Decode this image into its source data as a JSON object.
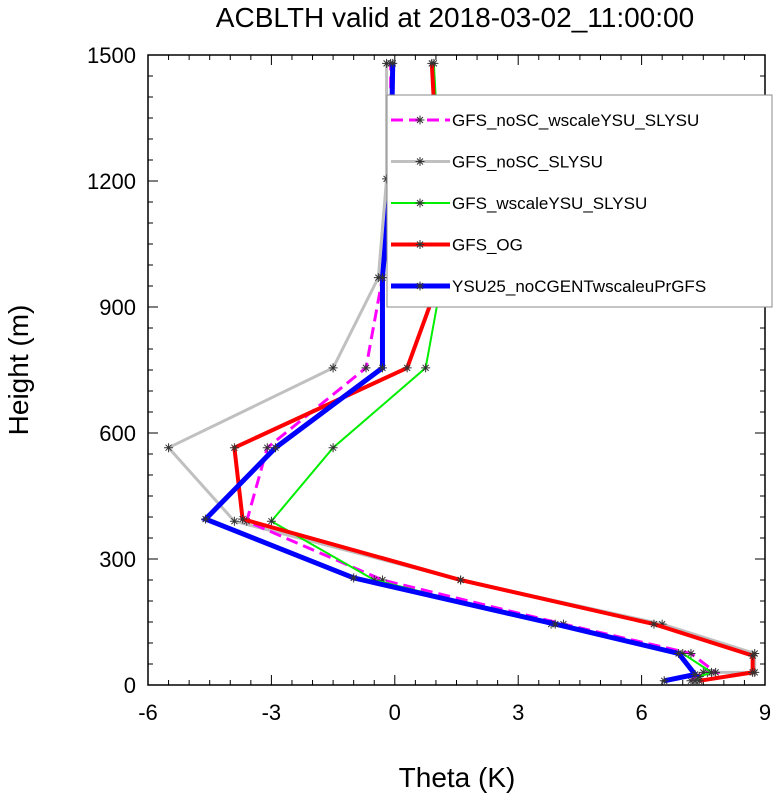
{
  "chart_data": {
    "type": "line",
    "title": "ACBLTH valid at 2018-03-02_11:00:00",
    "xlabel": "Theta (K)",
    "ylabel": "Height (m)",
    "xlim": [
      -6,
      9
    ],
    "ylim": [
      0,
      1500
    ],
    "xticks": [
      "-6",
      "-3",
      "0",
      "3",
      "6",
      "9"
    ],
    "yticks": [
      "0",
      "300",
      "600",
      "900",
      "1200",
      "1500"
    ],
    "grid": false,
    "legend_position": "top-right",
    "series": [
      {
        "name": "GFS_noSC_wscaleYSU_SLYSU",
        "color": "#ff00ff",
        "dash": "dashed",
        "width": 3,
        "marker": "asterisk",
        "points": [
          [
            7.2,
            10
          ],
          [
            7.5,
            30
          ],
          [
            7.8,
            30
          ],
          [
            7.2,
            75
          ],
          [
            4.1,
            145
          ],
          [
            -0.3,
            250
          ],
          [
            -3.6,
            390
          ],
          [
            -3.1,
            565
          ],
          [
            -0.7,
            755
          ],
          [
            -0.3,
            970
          ],
          [
            -0.1,
            1205
          ],
          [
            -0.1,
            1480
          ]
        ]
      },
      {
        "name": "GFS_noSC_SLYSU",
        "color": "#c0c0c0",
        "dash": "solid",
        "width": 3,
        "marker": "asterisk",
        "points": [
          [
            7.3,
            10
          ],
          [
            7.6,
            30
          ],
          [
            8.75,
            30
          ],
          [
            8.75,
            75
          ],
          [
            6.5,
            145
          ],
          [
            1.6,
            250
          ],
          [
            -3.9,
            390
          ],
          [
            -5.5,
            565
          ],
          [
            -1.5,
            755
          ],
          [
            -0.4,
            970
          ],
          [
            -0.2,
            1205
          ],
          [
            -0.2,
            1480
          ]
        ]
      },
      {
        "name": "GFS_wscaleYSU_SLYSU",
        "color": "#00ee00",
        "dash": "solid",
        "width": 2,
        "marker": "asterisk",
        "points": [
          [
            7.3,
            10
          ],
          [
            7.4,
            20
          ],
          [
            7.7,
            30
          ],
          [
            7.0,
            75
          ],
          [
            3.8,
            145
          ],
          [
            -0.5,
            250
          ],
          [
            -3.0,
            390
          ],
          [
            -1.5,
            565
          ],
          [
            0.75,
            755
          ],
          [
            1.15,
            970
          ],
          [
            1.1,
            1205
          ],
          [
            0.95,
            1480
          ]
        ]
      },
      {
        "name": "GFS_OG",
        "color": "#ff0000",
        "dash": "solid",
        "width": 4,
        "marker": "asterisk",
        "points": [
          [
            7.4,
            10
          ],
          [
            8.7,
            30
          ],
          [
            8.7,
            70
          ],
          [
            6.3,
            145
          ],
          [
            1.6,
            250
          ],
          [
            -3.7,
            395
          ],
          [
            -3.9,
            565
          ],
          [
            0.3,
            755
          ],
          [
            1.1,
            970
          ],
          [
            1.05,
            1205
          ],
          [
            0.9,
            1480
          ]
        ]
      },
      {
        "name": "YSU25_noCGENTwscaleuPrGFS",
        "color": "#0000ff",
        "dash": "solid",
        "width": 5,
        "marker": "asterisk",
        "points": [
          [
            6.55,
            10
          ],
          [
            7.3,
            25
          ],
          [
            6.9,
            75
          ],
          [
            3.9,
            145
          ],
          [
            -1.0,
            255
          ],
          [
            -4.6,
            395
          ],
          [
            -2.9,
            565
          ],
          [
            -0.3,
            755
          ],
          [
            -0.3,
            970
          ],
          [
            -0.1,
            1205
          ],
          [
            -0.05,
            1480
          ]
        ]
      }
    ]
  }
}
